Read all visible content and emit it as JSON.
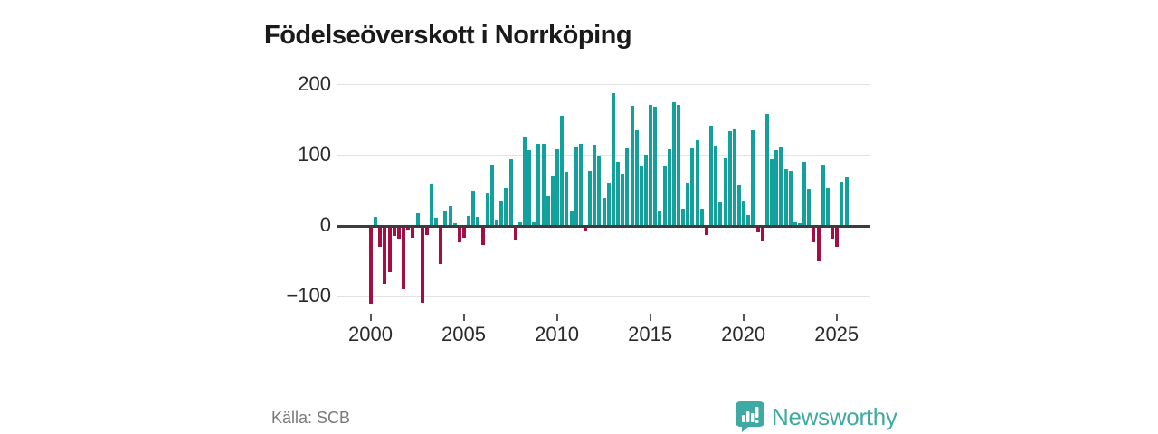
{
  "title": "Födelseöverskott i Norrköping",
  "source": "Källa: SCB",
  "brand": {
    "name": "Newsworthy",
    "color": "#3faaa3"
  },
  "chart_data": {
    "type": "bar",
    "title": "Födelseöverskott i Norrköping",
    "frequency": "quarterly",
    "start_year": 2000,
    "start_quarter": 1,
    "unit": "personer",
    "grid": true,
    "legend": "none",
    "ylim": [
      -130,
      215
    ],
    "colors": {
      "positive": "#12a29b",
      "negative": "#a60d42"
    },
    "yticks": [
      {
        "v": 200,
        "label": "200"
      },
      {
        "v": 100,
        "label": "100"
      },
      {
        "v": 0,
        "label": "0"
      },
      {
        "v": -100,
        "label": "−100"
      }
    ],
    "xticks": [
      {
        "year": 2000,
        "label": "2000"
      },
      {
        "year": 2005,
        "label": "2005"
      },
      {
        "year": 2010,
        "label": "2010"
      },
      {
        "year": 2015,
        "label": "2015"
      },
      {
        "year": 2020,
        "label": "2020"
      },
      {
        "year": 2025,
        "label": "2025"
      }
    ],
    "values": [
      -108,
      11,
      -27,
      -79,
      -63,
      -12,
      -16,
      -87,
      -2,
      -14,
      17,
      -106,
      -10,
      58,
      10,
      -51,
      20,
      27,
      2,
      -21,
      -14,
      13,
      49,
      12,
      -24,
      45,
      86,
      8,
      34,
      53,
      94,
      -17,
      4,
      125,
      107,
      5,
      116,
      116,
      41,
      69,
      108,
      155,
      76,
      21,
      110,
      115,
      -5,
      77,
      114,
      99,
      39,
      60,
      187,
      90,
      73,
      109,
      169,
      134,
      83,
      100,
      171,
      168,
      21,
      83,
      108,
      174,
      171,
      23,
      60,
      109,
      120,
      23,
      -10,
      141,
      112,
      33,
      95,
      133,
      136,
      57,
      35,
      14,
      134,
      -7,
      -18,
      158,
      93,
      106,
      110,
      79,
      77,
      5,
      2,
      90,
      51,
      -20,
      -48,
      84,
      53,
      -16,
      -27,
      61,
      68
    ]
  }
}
